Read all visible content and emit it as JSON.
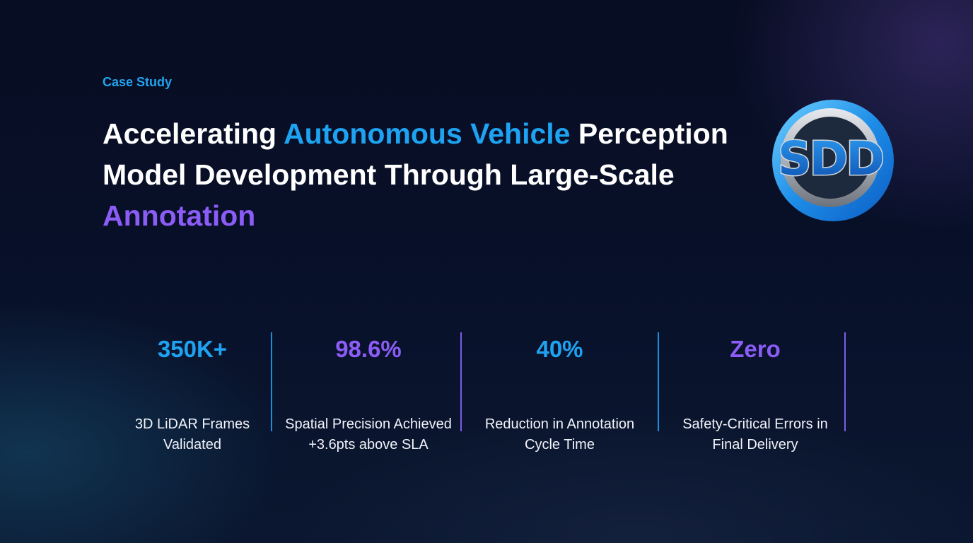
{
  "eyebrow": "Case Study",
  "headline": {
    "part1": "Accelerating ",
    "highlight1": "Autonomous Vehicle",
    "part2": " Perception Model Development Through Large-Scale ",
    "highlight2": "Annotation"
  },
  "logo": {
    "letters": "SDD",
    "colors": {
      "ring": "#1e8ee8",
      "ring_light": "#6fd0ff",
      "silver": "#c8ccd2",
      "silver_dark": "#6d737c",
      "letter_fill": "#1565c0"
    }
  },
  "stats": [
    {
      "value": "350K+",
      "label": "3D LiDAR Frames Validated"
    },
    {
      "value": "98.6%",
      "label": "Spatial Precision Achieved +3.6pts above SLA"
    },
    {
      "value": "40%",
      "label": "Reduction in Annotation Cycle Time"
    },
    {
      "value": "Zero",
      "label": "Safety-Critical Errors in Final Delivery"
    }
  ],
  "colors": {
    "accent_blue": "#1ea3f2",
    "accent_violet": "#8b5cf6",
    "background": "#070d22"
  }
}
